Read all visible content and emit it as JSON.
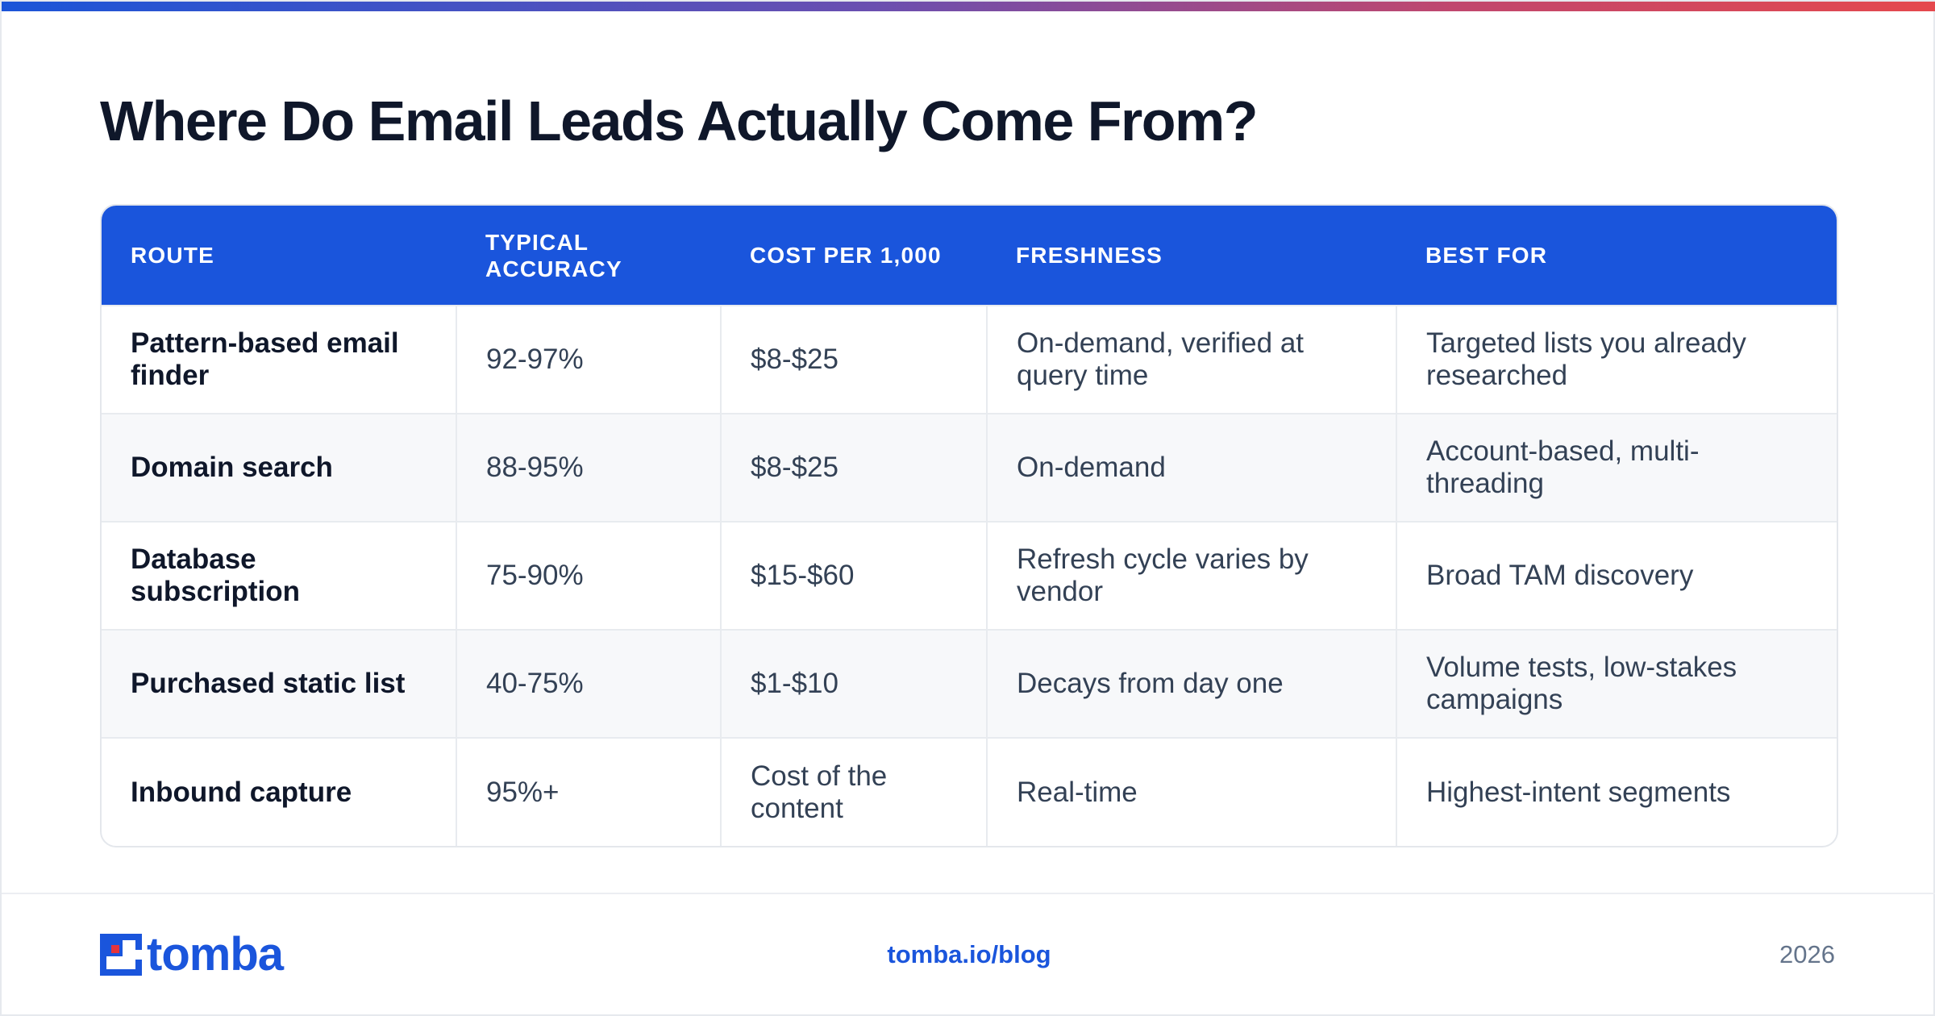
{
  "title": "Where Do Email Leads Actually Come From?",
  "table": {
    "headers": [
      "ROUTE",
      "TYPICAL ACCURACY",
      "COST PER 1,000",
      "FRESHNESS",
      "BEST FOR"
    ],
    "rows": [
      [
        "Pattern-based email finder",
        "92-97%",
        "$8-$25",
        "On-demand, verified at query time",
        "Targeted lists you already researched"
      ],
      [
        "Domain search",
        "88-95%",
        "$8-$25",
        "On-demand",
        "Account-based, multi-threading"
      ],
      [
        "Database subscription",
        "75-90%",
        "$15-$60",
        "Refresh cycle varies by vendor",
        "Broad TAM discovery"
      ],
      [
        "Purchased static list",
        "40-75%",
        "$1-$10",
        "Decays from day one",
        "Volume tests, low-stakes campaigns"
      ],
      [
        "Inbound capture",
        "95%+",
        "Cost of the content",
        "Real-time",
        "Highest-intent segments"
      ]
    ]
  },
  "footer": {
    "logo_text": "tomba",
    "link": "tomba.io/blog",
    "year": "2026"
  },
  "colors": {
    "accent": "#1a55dc",
    "title": "#0f172a",
    "body_text": "#334155",
    "muted": "#64748b",
    "logo_red": "#e5343b"
  }
}
